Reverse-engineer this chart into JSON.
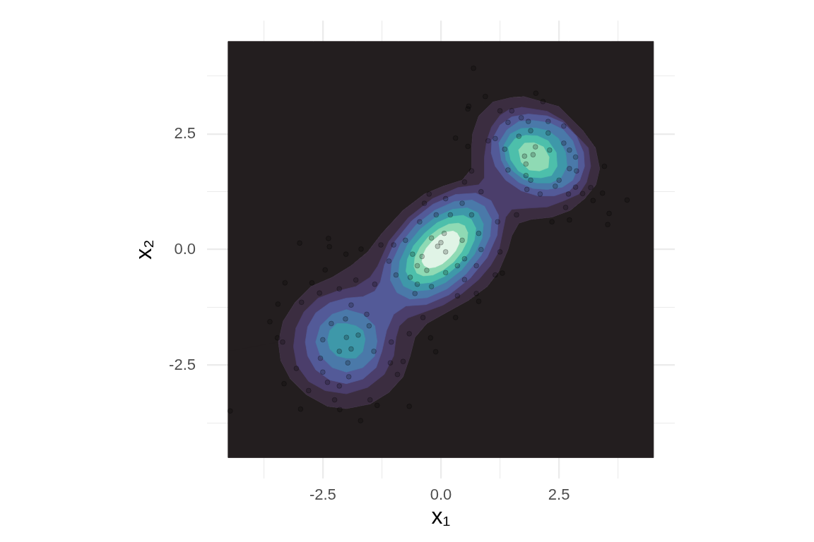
{
  "chart_data": {
    "type": "scatter",
    "xlabel": "x₁",
    "ylabel": "x₂",
    "xlim": [
      -4.95,
      4.95
    ],
    "ylim": [
      -4.95,
      4.95
    ],
    "xticks": [
      {
        "value": -3.75,
        "label": null
      },
      -2.5,
      {
        "value": -1.25,
        "label": null
      },
      {
        "value": 0,
        "label": "0.0"
      },
      {
        "value": 1.25,
        "label": null
      },
      2.5,
      {
        "value": 3.75,
        "label": null
      }
    ],
    "yticks": [
      {
        "value": -3.75,
        "label": null
      },
      -2.5,
      {
        "value": -1.25,
        "label": null
      },
      {
        "value": 0,
        "label": "0.0"
      },
      {
        "value": 1.25,
        "label": null
      },
      2.5,
      {
        "value": 3.75,
        "label": null
      }
    ],
    "grid": true,
    "series": [
      {
        "type": "area",
        "color": "#231e1f",
        "x": [
          -4.5,
          -4.5,
          4.5,
          4.5,
          3.6,
          2.7,
          1.8,
          0.9,
          0,
          -0.9,
          -1.8,
          -2.7,
          -3.6,
          -4.5,
          -4.5,
          -3.44,
          -3.34,
          -3.09,
          -2.75,
          -2.3,
          -1.9,
          -1.55,
          -1.25,
          -0.8,
          -0.35,
          0.05,
          0.45,
          0.65,
          0.65,
          0.67,
          0.8,
          1.1,
          1.5,
          1.75,
          2.5,
          2.99,
          3.27,
          3.36,
          3.28,
          3.04,
          2.74,
          2.35,
          1.9,
          1.65,
          1.5,
          1.42,
          1.22,
          0.98,
          0.58,
          0.05,
          -0.3,
          -0.55,
          -0.65,
          -0.8,
          -1.1,
          -1.5,
          -2,
          -2.4,
          -2.84,
          -3.19,
          -3.39,
          -3.44
        ],
        "values": [
          -2.2,
          -4.5,
          -4.5,
          4.5,
          4.5,
          4.5,
          4.5,
          4.5,
          4.5,
          4.5,
          4.5,
          4.5,
          4.5,
          4.5,
          -2.2,
          -2,
          -1.55,
          -1.15,
          -0.8,
          -0.6,
          -0.35,
          -0.05,
          0.35,
          0.85,
          1.2,
          1.37,
          1.5,
          1.75,
          2.2,
          2.5,
          2.89,
          3.19,
          3.29,
          3.31,
          3.09,
          2.59,
          2.2,
          1.75,
          1.4,
          1.1,
          0.85,
          0.7,
          0.65,
          0.57,
          0.3,
          0,
          -0.48,
          -0.8,
          -1.1,
          -1.4,
          -1.6,
          -1.9,
          -2.3,
          -2.75,
          -3.09,
          -3.34,
          -3.44,
          -3.39,
          -3.14,
          -2.79,
          -2.4,
          -2
        ]
      },
      {
        "type": "area",
        "color": "#3b2d40",
        "x": [
          1.75,
          2.5,
          2.99,
          3.27,
          3.36,
          3.28,
          3.04,
          2.74,
          2.35,
          1.9,
          1.65,
          1.5,
          1.42,
          1.22,
          0.98,
          0.58,
          0.05,
          -0.3,
          -0.55,
          -0.65,
          -0.8,
          -1.1,
          -1.5,
          -2,
          -2.4,
          -2.84,
          -3.19,
          -3.39,
          -3.44,
          -3.34,
          -3.09,
          -2.75,
          -2.3,
          -1.9,
          -1.55,
          -1.25,
          -0.8,
          -0.35,
          0.05,
          0.45,
          0.65,
          0.65,
          0.67,
          0.8,
          1.1,
          1.5
        ],
        "values": [
          3.31,
          3.09,
          2.59,
          2.2,
          1.75,
          1.4,
          1.1,
          0.85,
          0.7,
          0.65,
          0.57,
          0.3,
          0,
          -0.48,
          -0.8,
          -1.1,
          -1.4,
          -1.6,
          -1.9,
          -2.3,
          -2.75,
          -3.09,
          -3.34,
          -3.44,
          -3.39,
          -3.14,
          -2.79,
          -2.4,
          -2,
          -1.55,
          -1.15,
          -0.8,
          -0.6,
          -0.35,
          -0.05,
          0.35,
          0.85,
          1.2,
          1.37,
          1.5,
          1.75,
          2.2,
          2.5,
          2.89,
          3.19,
          3.29
        ]
      },
      {
        "type": "area",
        "color": "#4b3e6b",
        "x": [
          1.7,
          2.25,
          2.59,
          2.84,
          3.12,
          3.17,
          3.08,
          2.92,
          2.59,
          2.25,
          1.9,
          1.5,
          1.37,
          1.3,
          1.22,
          1.05,
          0.8,
          0.45,
          0.05,
          -0.35,
          -0.7,
          -0.88,
          -0.95,
          -1,
          -1.2,
          -1.55,
          -2,
          -2.45,
          -2.8,
          -3.05,
          -3.12,
          -3.07,
          -2.9,
          -2.6,
          -2.2,
          -1.8,
          -1.5,
          -1.34,
          -1.1,
          -0.69,
          -0.18,
          0.36,
          0.8,
          0.92,
          0.92,
          0.97,
          1.07,
          1.25,
          1.45
        ],
        "values": [
          3.08,
          2.99,
          2.79,
          2.5,
          2.2,
          1.8,
          1.45,
          1.2,
          1.05,
          0.92,
          0.9,
          0.87,
          0.7,
          0.35,
          -0.05,
          -0.35,
          -0.65,
          -0.95,
          -1.2,
          -1.35,
          -1.48,
          -1.65,
          -1.9,
          -2.3,
          -2.7,
          -2.98,
          -3.12,
          -3.05,
          -2.85,
          -2.5,
          -2.1,
          -1.7,
          -1.35,
          -1.05,
          -0.9,
          -0.8,
          -0.6,
          -0.36,
          0.18,
          0.69,
          1.1,
          1.34,
          1.4,
          1.55,
          2,
          2.35,
          2.65,
          2.9,
          3.03
        ]
      },
      {
        "type": "area",
        "color": "#535a98",
        "x": [
          -0.98,
          -0.62,
          -0.17,
          0.31,
          0.74,
          1.06,
          1.22,
          1.19,
          0.98,
          0.62,
          0.17,
          -0.31,
          -0.74,
          -1,
          -1.15,
          -1.25,
          -1.37,
          -1.65,
          -2,
          -2.35,
          -2.65,
          -2.82,
          -2.87,
          -2.82,
          -2.65,
          -2.35,
          -2,
          -1.65,
          -1.4,
          -1.28,
          -1.19
        ],
        "values": [
          0.17,
          0.62,
          0.98,
          1.19,
          1.22,
          1.06,
          0.74,
          0.31,
          -0.17,
          -0.62,
          -0.98,
          -1.19,
          -1.22,
          -1.4,
          -1.75,
          -2.2,
          -2.55,
          -2.8,
          -2.9,
          -2.82,
          -2.6,
          -2.3,
          -2,
          -1.67,
          -1.37,
          -1.15,
          -1.05,
          -1.02,
          -0.9,
          -0.7,
          -0.31
        ]
      },
      {
        "type": "area",
        "color": "#535a98",
        "x": [
          1.07,
          1.25,
          1.5,
          1.85,
          2.25,
          2.59,
          2.87,
          3.02,
          3.04,
          2.94,
          2.72,
          2.4,
          2.05,
          1.7,
          1.37,
          1.15,
          1.06
        ],
        "values": [
          2.35,
          2.69,
          2.87,
          2.93,
          2.89,
          2.74,
          2.45,
          2.1,
          1.8,
          1.5,
          1.27,
          1.16,
          1.16,
          1.27,
          1.5,
          1.8,
          2.1
        ]
      },
      {
        "type": "area",
        "color": "#4a79a9",
        "x": [
          1.22,
          1.4,
          1.65,
          1.95,
          2.3,
          2.59,
          2.79,
          2.89,
          2.89,
          2.79,
          2.57,
          2.25,
          1.95,
          1.65,
          1.42,
          1.27
        ],
        "values": [
          2.3,
          2.59,
          2.77,
          2.79,
          2.74,
          2.59,
          2.35,
          2.05,
          1.75,
          1.5,
          1.35,
          1.3,
          1.32,
          1.45,
          1.65,
          1.95
        ]
      },
      {
        "type": "area",
        "color": "#4a79a9",
        "x": [
          0.93,
          0.66,
          0.29,
          -0.13,
          -0.53,
          -0.85,
          -1.04,
          -1.07,
          -0.93,
          -0.66,
          -0.29,
          0.13,
          0.53,
          0.85,
          1.04,
          1.07
        ],
        "values": [
          0.93,
          1.07,
          1.04,
          0.85,
          0.53,
          0.13,
          -0.29,
          -0.66,
          -0.93,
          -1.07,
          -1.04,
          -0.85,
          -0.53,
          -0.13,
          0.29,
          0.66
        ]
      },
      {
        "type": "area",
        "color": "#4a79a9",
        "x": [
          -1.35,
          -1.4,
          -1.65,
          -2,
          -2.3,
          -2.55,
          -2.65,
          -2.55,
          -2.3,
          -2,
          -1.65,
          -1.4
        ],
        "values": [
          -2,
          -1.65,
          -1.4,
          -1.3,
          -1.4,
          -1.65,
          -2,
          -2.3,
          -2.55,
          -2.65,
          -2.55,
          -2.3
        ]
      },
      {
        "type": "area",
        "color": "#3e98a9",
        "x": [
          1.33,
          1.47,
          1.7,
          2,
          2.27,
          2.49,
          2.64,
          2.67,
          2.54,
          2.32,
          2.02,
          1.75,
          1.52,
          1.37
        ],
        "values": [
          2.25,
          2.5,
          2.62,
          2.63,
          2.57,
          2.4,
          2.1,
          1.8,
          1.55,
          1.44,
          1.44,
          1.52,
          1.7,
          1.95
        ]
      },
      {
        "type": "area",
        "color": "#3e98a9",
        "x": [
          0.79,
          0.56,
          0.25,
          -0.1,
          -0.44,
          -0.71,
          -0.87,
          -0.9,
          -0.79,
          -0.56,
          -0.25,
          0.1,
          0.44,
          0.71,
          0.87,
          0.9
        ],
        "values": [
          0.79,
          0.9,
          0.87,
          0.71,
          0.44,
          0.1,
          -0.25,
          -0.56,
          -0.79,
          -0.9,
          -0.87,
          -0.71,
          -0.44,
          -0.1,
          0.25,
          0.56
        ]
      },
      {
        "type": "area",
        "color": "#3e98a9",
        "x": [
          -1.6,
          -1.65,
          -1.8,
          -2,
          -2.2,
          -2.35,
          -2.4,
          -2.35,
          -2.2,
          -2,
          -1.8,
          -1.65
        ],
        "values": [
          -1.95,
          -1.75,
          -1.65,
          -1.6,
          -1.6,
          -1.75,
          -1.95,
          -2.15,
          -2.3,
          -2.35,
          -2.35,
          -2.2
        ]
      },
      {
        "type": "area",
        "color": "#4dbfab",
        "x": [
          1.42,
          1.57,
          1.79,
          2.04,
          2.27,
          2.44,
          2.46,
          2.34,
          2.12,
          1.87,
          1.64,
          1.47
        ],
        "values": [
          2.2,
          2.4,
          2.47,
          2.46,
          2.35,
          2.1,
          1.8,
          1.6,
          1.55,
          1.57,
          1.7,
          1.95
        ]
      },
      {
        "type": "area",
        "color": "#4dbfab",
        "x": [
          0.65,
          0.47,
          0.21,
          -0.08,
          -0.35,
          -0.58,
          -0.71,
          -0.74,
          -0.65,
          -0.47,
          -0.21,
          0.08,
          0.35,
          0.58,
          0.71,
          0.74
        ],
        "values": [
          0.65,
          0.74,
          0.71,
          0.58,
          0.35,
          0.08,
          -0.21,
          -0.47,
          -0.65,
          -0.74,
          -0.71,
          -0.58,
          -0.35,
          -0.08,
          0.21,
          0.47
        ]
      },
      {
        "type": "area",
        "color": "#8fdab4",
        "x": [
          1.64,
          1.77,
          1.97,
          2.17,
          2.29,
          2.27,
          2.09,
          1.87,
          1.69
        ],
        "values": [
          2.15,
          2.3,
          2.31,
          2.22,
          2,
          1.77,
          1.7,
          1.72,
          1.9
        ]
      },
      {
        "type": "area",
        "color": "#8fdab4",
        "x": [
          0.51,
          0.37,
          0.17,
          -0.05,
          -0.27,
          -0.44,
          -0.55,
          -0.57,
          -0.51,
          -0.37,
          -0.17,
          0.05,
          0.27,
          0.44,
          0.55,
          0.57
        ],
        "values": [
          0.51,
          0.57,
          0.55,
          0.44,
          0.27,
          0.05,
          -0.17,
          -0.37,
          -0.51,
          -0.57,
          -0.55,
          -0.44,
          -0.27,
          -0.05,
          0.17,
          0.37
        ]
      },
      {
        "type": "area",
        "color": "#e0f4e6",
        "x": [
          0.35,
          0.26,
          0.12,
          -0.03,
          -0.18,
          -0.31,
          -0.38,
          -0.4,
          -0.35,
          -0.26,
          -0.12,
          0.03,
          0.18,
          0.31,
          0.38,
          0.4
        ],
        "values": [
          0.35,
          0.4,
          0.38,
          0.31,
          0.18,
          0.03,
          -0.12,
          -0.26,
          -0.35,
          -0.4,
          -0.38,
          -0.31,
          -0.18,
          -0.03,
          0.12,
          0.26
        ]
      },
      {
        "type": "scatter",
        "color": "#000000",
        "marker": "circle",
        "x": [
          -2.99,
          -2.38,
          -2.36,
          -1.69,
          -2.01,
          -2.45,
          -3.3,
          -2.73,
          -3.62,
          -3.45,
          -3.46,
          -3.32,
          -2.97,
          -2.14,
          -1.7,
          -0.67,
          -4.46,
          -1.35,
          -0.11,
          -0.22,
          0.31,
          -0.38,
          1.3,
          0.8,
          0.69,
          2.01,
          0.94,
          2.16,
          0.59,
          0.57,
          0.31,
          0.57,
          3.46,
          3.94,
          3.56,
          3.53,
          2.72,
          2.35,
          0.5,
          2.27,
          2,
          1.77,
          1.95,
          1.8,
          2.3,
          1.9,
          1.5,
          1.25,
          1.35,
          1.42,
          1.15,
          1,
          1.65,
          2.6,
          2.72,
          2.85,
          2.87,
          2.72,
          2.5,
          2.42,
          2.7,
          2.85,
          1.9,
          1.8,
          2.1,
          1.82,
          1.85,
          2.27,
          2.6,
          1.42,
          1.7,
          3.42,
          3.22,
          3.17,
          3,
          2.64,
          0.65,
          -0.07,
          0.1,
          0,
          -0.2,
          0.07,
          -0.4,
          -0.5,
          -0.3,
          0.1,
          0.35,
          0.5,
          0.45,
          0.2,
          -0.1,
          -0.45,
          -0.6,
          -0.75,
          -0.65,
          -0.5,
          -0.2,
          0.5,
          0.75,
          0.85,
          0.8,
          0.65,
          0.45,
          0.1,
          -0.35,
          -1,
          -1.1,
          -0.95,
          -0.55,
          0.35,
          0.75,
          1.15,
          1.25,
          1.2,
          1.6,
          0.85,
          -0.25,
          -1.27,
          -2,
          -1.75,
          -2.15,
          -1.9,
          -1.97,
          -1.95,
          -2.15,
          -2.4,
          -2.5,
          -2.55,
          -2.5,
          -2.32,
          -2.02,
          -1.9,
          -1.57,
          -1.52,
          -1.42,
          -1.05,
          -1.07,
          -0.92,
          -0.8,
          -0.67,
          -1.5,
          -2.25,
          -2.8,
          -3.06,
          -3.35,
          -2.95,
          -2.57,
          -1.8,
          -2.15,
          -1.4
        ],
        "values": [
          0.14,
          0.24,
          0.06,
          0.01,
          -0.1,
          -0.44,
          -0.72,
          -0.72,
          -1.56,
          -1.18,
          -1.91,
          -2.9,
          -3.45,
          -3.46,
          -3.7,
          -3.39,
          -3.49,
          -3.37,
          -2.21,
          -1.91,
          -1.47,
          -1.47,
          -0.51,
          -1.12,
          3.92,
          3.38,
          3.31,
          3.2,
          3.1,
          3.04,
          2.41,
          2.23,
          1.8,
          1.07,
          0.78,
          0.54,
          0.64,
          0.6,
          1.46,
          2.52,
          2.22,
          2.02,
          2.05,
          1.85,
          2.15,
          2.57,
          3,
          3,
          2.17,
          1.72,
          2.4,
          2.35,
          2.45,
          2.3,
          2.15,
          2,
          1.7,
          1.75,
          1.5,
          1.37,
          1.2,
          1.35,
          1.5,
          1.6,
          1.2,
          1.3,
          2.77,
          2.77,
          2.67,
          2.75,
          2.85,
          1.22,
          1.06,
          1.34,
          1.21,
          0.91,
          1.7,
          0.07,
          -0.05,
          0.15,
          0.25,
          0.35,
          -0.15,
          -0.35,
          -0.45,
          -0.5,
          -0.35,
          -0.2,
          0.2,
          0.75,
          0.75,
          0.6,
          -0.1,
          0.2,
          -0.6,
          -0.75,
          -0.8,
          -0.65,
          -0.35,
          0,
          0.35,
          0.75,
          1,
          1.1,
          1,
          0.1,
          -0.25,
          -0.55,
          -0.95,
          -1,
          -0.95,
          -0.55,
          -0.05,
          0.6,
          0.75,
          1.25,
          1.2,
          0.1,
          -1.9,
          -1.85,
          -2.2,
          -2.15,
          -2.45,
          -2.75,
          -2.95,
          -2.87,
          -2.65,
          -2.35,
          -1.95,
          -1.6,
          -1.5,
          -1.2,
          -1.4,
          -1.65,
          -2.2,
          -2,
          -2.45,
          -2.7,
          -2.42,
          -1.82,
          -3.25,
          -3.25,
          -3.05,
          -2.57,
          -2,
          -1.14,
          -0.94,
          -0.66,
          -0.85,
          -0.75
        ]
      }
    ]
  }
}
